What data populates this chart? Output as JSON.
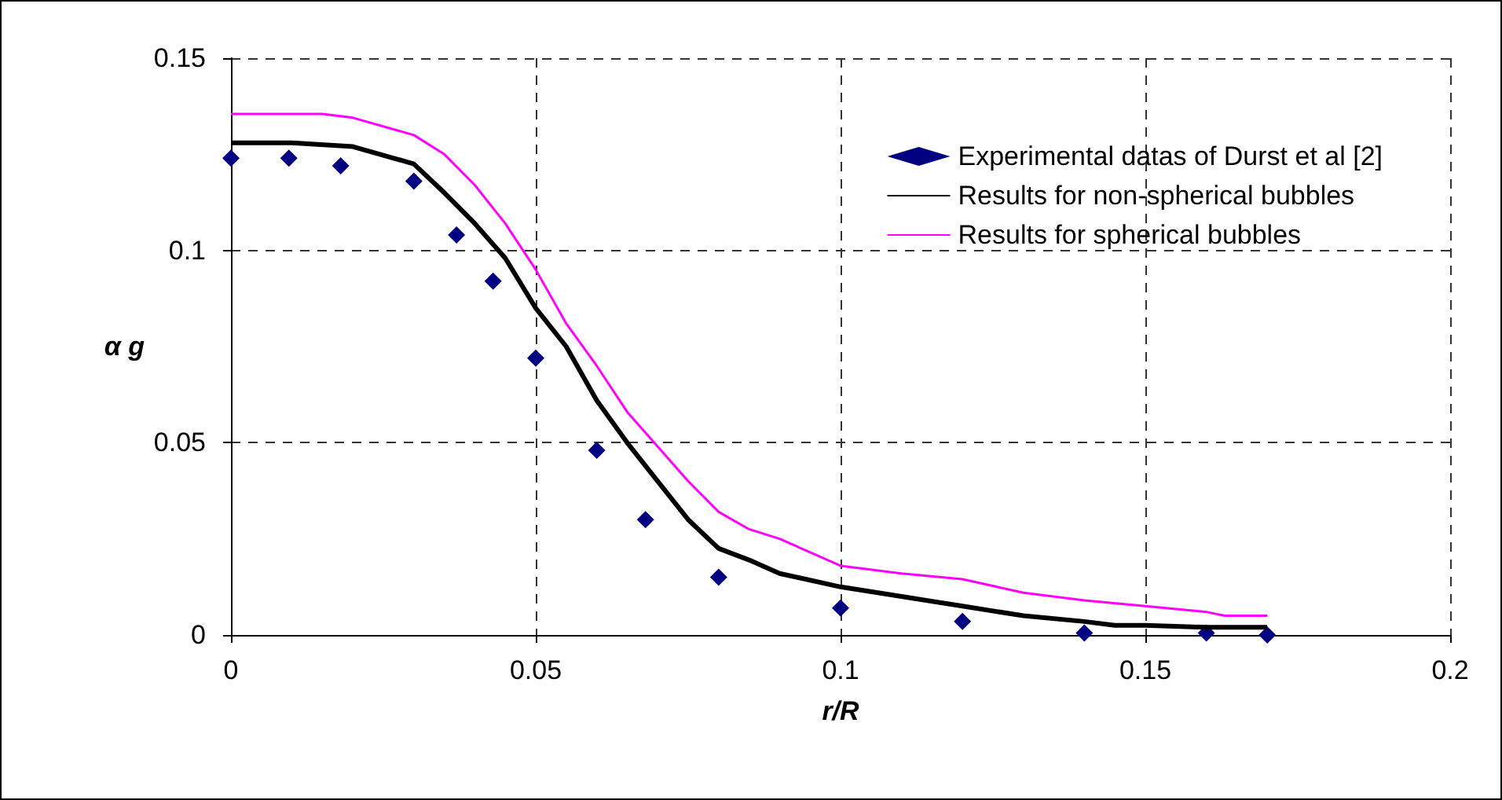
{
  "chart_data": {
    "type": "line",
    "xlabel": "r/R",
    "ylabel": "α g",
    "xlim": [
      0,
      0.2
    ],
    "xticks": [
      0,
      0.05,
      0.1,
      0.15,
      0.2
    ],
    "ylim": [
      0,
      0.15
    ],
    "yticks": [
      0,
      0.05,
      0.1,
      0.15
    ],
    "grid": true,
    "legend": "top right",
    "series": [
      {
        "name": "Experimental datas of Durst et al [2]",
        "type": "scatter",
        "marker": "diamond",
        "color": "#000080",
        "x": [
          0,
          0.0095,
          0.018,
          0.03,
          0.037,
          0.043,
          0.05,
          0.06,
          0.068,
          0.08,
          0.1,
          0.12,
          0.14,
          0.16,
          0.17
        ],
        "values": [
          0.124,
          0.124,
          0.122,
          0.118,
          0.104,
          0.092,
          0.072,
          0.048,
          0.03,
          0.015,
          0.007,
          0.0035,
          0.0005,
          0.0005,
          0
        ]
      },
      {
        "name": "Results for non-spherical bubbles",
        "marker": "none",
        "color": "#000000",
        "x": [
          0,
          0.01,
          0.02,
          0.03,
          0.035,
          0.04,
          0.045,
          0.05,
          0.055,
          0.06,
          0.065,
          0.07,
          0.075,
          0.08,
          0.085,
          0.09,
          0.1,
          0.11,
          0.12,
          0.13,
          0.14,
          0.145,
          0.15,
          0.16,
          0.17
        ],
        "values": [
          0.128,
          0.128,
          0.127,
          0.1225,
          0.115,
          0.107,
          0.098,
          0.085,
          0.075,
          0.061,
          0.05,
          0.04,
          0.03,
          0.0225,
          0.0195,
          0.016,
          0.0125,
          0.01,
          0.0075,
          0.005,
          0.0035,
          0.0025,
          0.0025,
          0.002,
          0.002
        ]
      },
      {
        "name": "Results for spherical bubbles",
        "marker": "none",
        "color": "#ff00ff",
        "x": [
          0,
          0.015,
          0.02,
          0.03,
          0.035,
          0.04,
          0.045,
          0.05,
          0.055,
          0.06,
          0.065,
          0.07,
          0.075,
          0.08,
          0.085,
          0.09,
          0.1,
          0.11,
          0.12,
          0.13,
          0.14,
          0.15,
          0.16,
          0.163,
          0.17
        ],
        "values": [
          0.1355,
          0.1355,
          0.1345,
          0.13,
          0.125,
          0.117,
          0.107,
          0.095,
          0.081,
          0.07,
          0.058,
          0.049,
          0.04,
          0.032,
          0.0275,
          0.025,
          0.018,
          0.016,
          0.0145,
          0.011,
          0.009,
          0.0075,
          0.006,
          0.005,
          0.005
        ]
      }
    ]
  }
}
